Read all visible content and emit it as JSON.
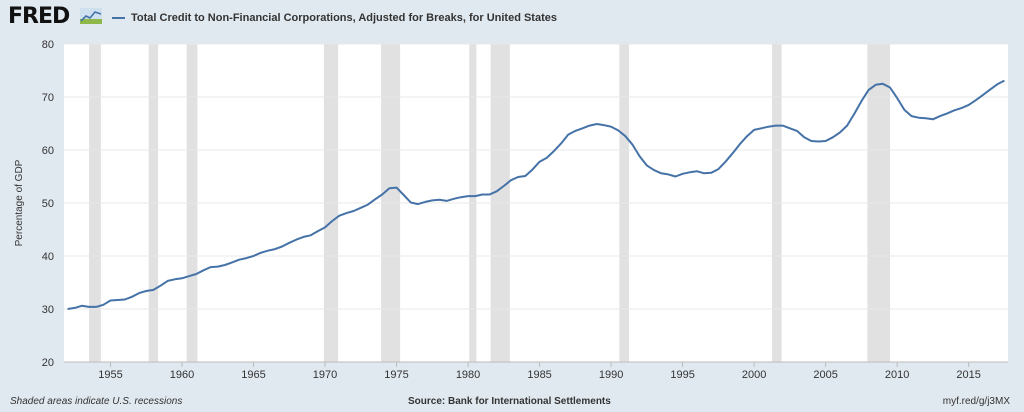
{
  "header": {
    "logo_text": "FRED",
    "logo_icon": "fred-chart-icon"
  },
  "colors": {
    "background": "#e1e9f0",
    "plot_background": "#ffffff",
    "series": "#4572a7",
    "recession": "#e1e1e1",
    "grid": "#e8e8e8"
  },
  "footer": {
    "left": "Shaded areas indicate U.S. recessions",
    "center": "Source: Bank for International Settlements",
    "right": "myf.red/g/j3MX"
  },
  "chart_data": {
    "type": "line",
    "title": "",
    "xlabel": "",
    "ylabel": "Percentage of GDP",
    "ylim": [
      20,
      80
    ],
    "xlim": [
      1951.75,
      2017.75
    ],
    "yticks": [
      20,
      30,
      40,
      50,
      60,
      70,
      80
    ],
    "xticks": [
      1955,
      1960,
      1965,
      1970,
      1975,
      1980,
      1985,
      1990,
      1995,
      2000,
      2005,
      2010,
      2015
    ],
    "grid": true,
    "legend_position": "top-left",
    "recessions": [
      [
        1953.5,
        1954.33
      ],
      [
        1957.67,
        1958.33
      ],
      [
        1960.33,
        1961.08
      ],
      [
        1969.92,
        1970.92
      ],
      [
        1973.92,
        1975.25
      ],
      [
        1980.08,
        1980.58
      ],
      [
        1981.58,
        1982.92
      ],
      [
        1990.58,
        1991.25
      ],
      [
        2001.25,
        2001.92
      ],
      [
        2007.92,
        2009.5
      ]
    ],
    "series": [
      {
        "name": "Total Credit to Non-Financial Corporations, Adjusted for Breaks, for United States",
        "x": [
          1952.0,
          1952.5,
          1953.0,
          1953.5,
          1954.0,
          1954.5,
          1955.0,
          1955.5,
          1956.0,
          1956.5,
          1957.0,
          1957.5,
          1958.0,
          1958.5,
          1959.0,
          1959.5,
          1960.0,
          1960.5,
          1961.0,
          1961.5,
          1962.0,
          1962.5,
          1963.0,
          1963.5,
          1964.0,
          1964.5,
          1965.0,
          1965.5,
          1966.0,
          1966.5,
          1967.0,
          1967.5,
          1968.0,
          1968.5,
          1969.0,
          1969.5,
          1970.0,
          1970.5,
          1971.0,
          1971.5,
          1972.0,
          1972.5,
          1973.0,
          1973.5,
          1974.0,
          1974.5,
          1975.0,
          1975.5,
          1976.0,
          1976.5,
          1977.0,
          1977.5,
          1978.0,
          1978.5,
          1979.0,
          1979.5,
          1980.0,
          1980.5,
          1981.0,
          1981.5,
          1982.0,
          1982.5,
          1983.0,
          1983.5,
          1984.0,
          1984.5,
          1985.0,
          1985.5,
          1986.0,
          1986.5,
          1987.0,
          1987.5,
          1988.0,
          1988.5,
          1989.0,
          1989.5,
          1990.0,
          1990.5,
          1991.0,
          1991.5,
          1992.0,
          1992.5,
          1993.0,
          1993.5,
          1994.0,
          1994.5,
          1995.0,
          1995.5,
          1996.0,
          1996.5,
          1997.0,
          1997.5,
          1998.0,
          1998.5,
          1999.0,
          1999.5,
          2000.0,
          2000.5,
          2001.0,
          2001.5,
          2002.0,
          2002.5,
          2003.0,
          2003.5,
          2004.0,
          2004.5,
          2005.0,
          2005.5,
          2006.0,
          2006.5,
          2007.0,
          2007.5,
          2008.0,
          2008.5,
          2009.0,
          2009.5,
          2010.0,
          2010.5,
          2011.0,
          2011.5,
          2012.0,
          2012.5,
          2013.0,
          2013.5,
          2014.0,
          2014.5,
          2015.0,
          2015.5,
          2016.0,
          2016.5,
          2017.0,
          2017.5
        ],
        "values": [
          30.0,
          30.2,
          30.6,
          30.4,
          30.4,
          30.8,
          31.6,
          31.7,
          31.8,
          32.3,
          33.0,
          33.4,
          33.6,
          34.4,
          35.3,
          35.6,
          35.8,
          36.2,
          36.6,
          37.3,
          37.9,
          38.0,
          38.3,
          38.8,
          39.3,
          39.6,
          40.0,
          40.6,
          41.0,
          41.3,
          41.8,
          42.5,
          43.1,
          43.6,
          43.9,
          44.7,
          45.4,
          46.6,
          47.6,
          48.1,
          48.5,
          49.1,
          49.7,
          50.7,
          51.6,
          52.8,
          52.9,
          51.5,
          50.1,
          49.8,
          50.2,
          50.5,
          50.6,
          50.4,
          50.8,
          51.1,
          51.3,
          51.3,
          51.6,
          51.6,
          52.2,
          53.2,
          54.3,
          54.9,
          55.1,
          56.3,
          57.8,
          58.5,
          59.8,
          61.2,
          62.9,
          63.6,
          64.1,
          64.6,
          64.9,
          64.7,
          64.4,
          63.7,
          62.6,
          61.0,
          58.8,
          57.1,
          56.2,
          55.6,
          55.4,
          55.0,
          55.5,
          55.8,
          56.0,
          55.6,
          55.7,
          56.4,
          57.8,
          59.4,
          61.1,
          62.6,
          63.8,
          64.1,
          64.4,
          64.6,
          64.6,
          64.1,
          63.6,
          62.4,
          61.7,
          61.6,
          61.7,
          62.4,
          63.3,
          64.6,
          66.8,
          69.2,
          71.3,
          72.3,
          72.5,
          71.8,
          69.8,
          67.6,
          66.4,
          66.1,
          66.0,
          65.8,
          66.4,
          66.9,
          67.5,
          67.9,
          68.5,
          69.4,
          70.4,
          71.4,
          72.4,
          73.1
        ]
      }
    ]
  }
}
